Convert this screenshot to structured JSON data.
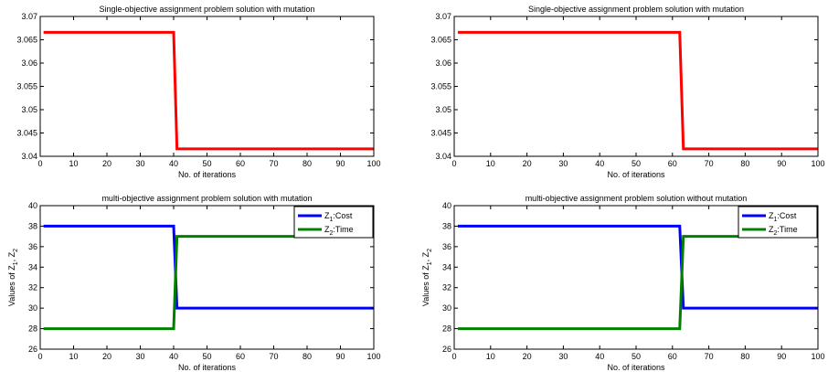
{
  "chart_data": [
    {
      "type": "line",
      "title": "Single-objective assignment problem solution with mutation",
      "xlabel": "No. of iterations",
      "ylabel": "",
      "xlim": [
        0,
        100
      ],
      "ylim": [
        3.04,
        3.07
      ],
      "xticks": [
        0,
        10,
        20,
        30,
        40,
        50,
        60,
        70,
        80,
        90,
        100
      ],
      "yticks": [
        3.04,
        3.045,
        3.05,
        3.055,
        3.06,
        3.065,
        3.07
      ],
      "ytick_labels": [
        "3.04",
        "3.045",
        "3.05",
        "3.055",
        "3.06",
        "3.065",
        "3.07"
      ],
      "grid": false,
      "legend": null,
      "series": [
        {
          "name": "",
          "color": "#ff0000",
          "x": [
            1,
            40,
            41,
            100
          ],
          "y": [
            3.0666,
            3.0666,
            3.0416,
            3.0416
          ]
        }
      ]
    },
    {
      "type": "line",
      "title": "Single-objective assignment problem solution with mutation",
      "xlabel": "No. of iterations",
      "ylabel": "",
      "xlim": [
        0,
        100
      ],
      "ylim": [
        3.04,
        3.07
      ],
      "xticks": [
        0,
        10,
        20,
        30,
        40,
        50,
        60,
        70,
        80,
        90,
        100
      ],
      "yticks": [
        3.04,
        3.045,
        3.05,
        3.055,
        3.06,
        3.065,
        3.07
      ],
      "ytick_labels": [
        "3.04",
        "3.045",
        "3.05",
        "3.055",
        "3.06",
        "3.065",
        "3.07"
      ],
      "grid": false,
      "legend": null,
      "series": [
        {
          "name": "",
          "color": "#ff0000",
          "x": [
            1,
            62,
            63,
            100
          ],
          "y": [
            3.0666,
            3.0666,
            3.0416,
            3.0416
          ]
        }
      ]
    },
    {
      "type": "line",
      "title": "multi-objective assignment problem solution with mutation",
      "xlabel": "No. of iterations",
      "ylabel": "Values of Z1, Z2",
      "xlim": [
        0,
        100
      ],
      "ylim": [
        26,
        40
      ],
      "xticks": [
        0,
        10,
        20,
        30,
        40,
        50,
        60,
        70,
        80,
        90,
        100
      ],
      "yticks": [
        26,
        28,
        30,
        32,
        34,
        36,
        38,
        40
      ],
      "ytick_labels": [
        "26",
        "28",
        "30",
        "32",
        "34",
        "36",
        "38",
        "40"
      ],
      "grid": false,
      "legend": "top-right",
      "series": [
        {
          "name": "Z1:Cost",
          "label_main": "Z",
          "label_sub": "1",
          "label_rest": ":Cost",
          "color": "#0000ff",
          "x": [
            1,
            40,
            41,
            100
          ],
          "y": [
            38,
            38,
            30,
            30
          ]
        },
        {
          "name": "Z2:Time",
          "label_main": "Z",
          "label_sub": "2",
          "label_rest": ":Time",
          "color": "#008000",
          "x": [
            1,
            40,
            41,
            100
          ],
          "y": [
            28,
            28,
            37,
            37
          ]
        }
      ]
    },
    {
      "type": "line",
      "title": "multi-objective assignment problem solution without mutation",
      "xlabel": "No. of iterations",
      "ylabel": "Values of Z1, Z2",
      "xlim": [
        0,
        100
      ],
      "ylim": [
        26,
        40
      ],
      "xticks": [
        0,
        10,
        20,
        30,
        40,
        50,
        60,
        70,
        80,
        90,
        100
      ],
      "yticks": [
        26,
        28,
        30,
        32,
        34,
        36,
        38,
        40
      ],
      "ytick_labels": [
        "26",
        "28",
        "30",
        "32",
        "34",
        "36",
        "38",
        "40"
      ],
      "grid": false,
      "legend": "top-right",
      "series": [
        {
          "name": "Z1:Cost",
          "label_main": "Z",
          "label_sub": "1",
          "label_rest": ":Cost",
          "color": "#0000ff",
          "x": [
            1,
            62,
            63,
            100
          ],
          "y": [
            38,
            38,
            30,
            30
          ]
        },
        {
          "name": "Z2:Time",
          "label_main": "Z",
          "label_sub": "2",
          "label_rest": ":Time",
          "color": "#008000",
          "x": [
            1,
            62,
            63,
            100
          ],
          "y": [
            28,
            28,
            37,
            37
          ]
        }
      ]
    }
  ]
}
